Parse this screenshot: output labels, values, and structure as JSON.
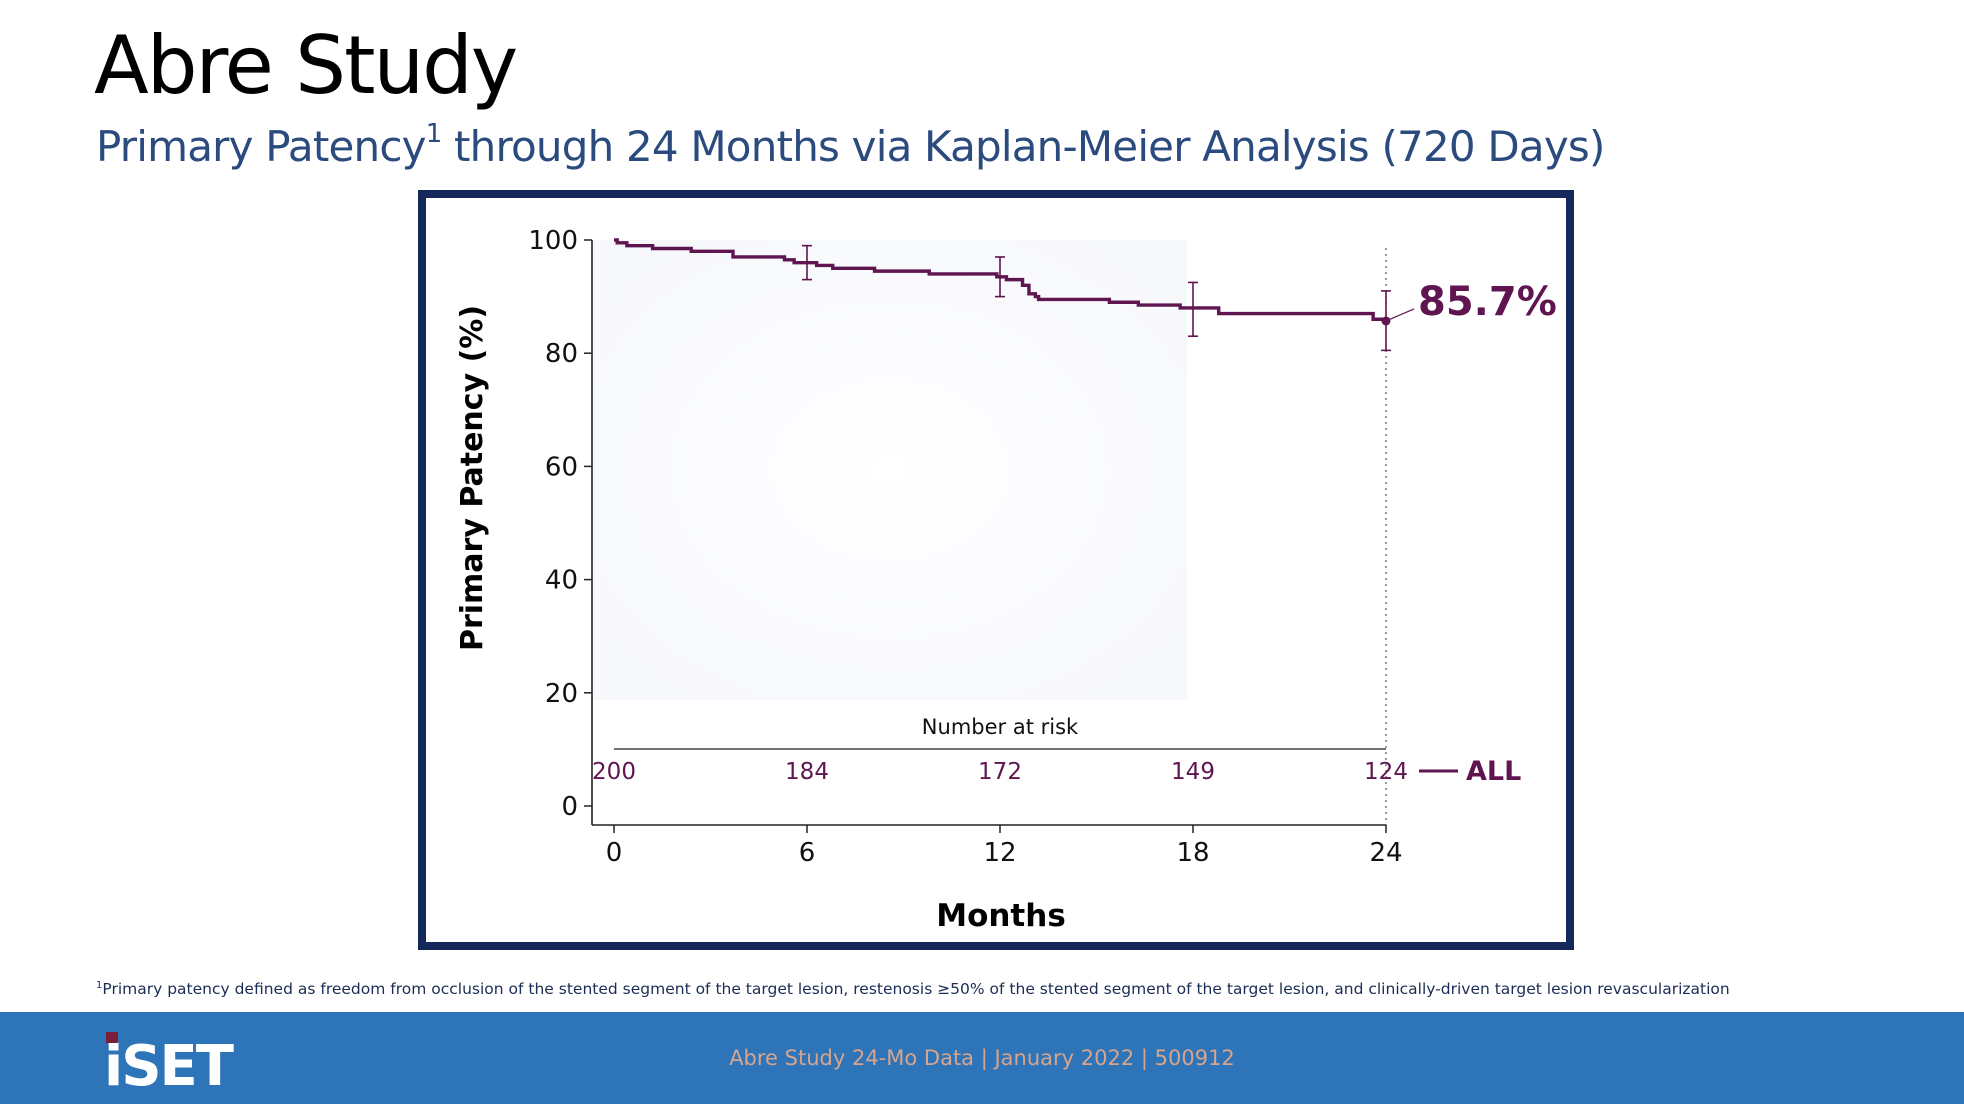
{
  "title": "Abre Study",
  "subtitle": {
    "main": "Primary Patency",
    "superscript": "1",
    "rest": " through 24 Months via Kaplan-Meier Analysis (720 Days)"
  },
  "chart_data": {
    "type": "line",
    "title": "",
    "xlabel": "Months",
    "ylabel": "Primary Patency (%)",
    "xlim": [
      0,
      24
    ],
    "ylim": [
      0,
      100
    ],
    "x_ticks": [
      0,
      6,
      12,
      18,
      24
    ],
    "y_ticks": [
      0,
      20,
      40,
      60,
      80,
      100
    ],
    "series": [
      {
        "name": "ALL",
        "color": "#5e1550",
        "step": true,
        "x": [
          0,
          0.1,
          0.4,
          1.2,
          2.4,
          3.7,
          5.3,
          5.6,
          6.3,
          6.8,
          8.1,
          9.8,
          11.9,
          12.2,
          12.7,
          12.9,
          13.1,
          13.2,
          15.4,
          16.3,
          17.6,
          18.8,
          23.6,
          24
        ],
        "y": [
          100,
          99.5,
          99,
          98.5,
          98,
          97,
          96.5,
          96,
          95.5,
          95,
          94.5,
          94,
          93.5,
          93,
          92,
          90.5,
          90,
          89.5,
          89,
          88.5,
          88,
          87,
          86,
          85.7
        ]
      }
    ],
    "confidence_intervals": [
      {
        "x": 6,
        "y": 96,
        "lower": 93,
        "upper": 99
      },
      {
        "x": 12,
        "y": 93.5,
        "lower": 90,
        "upper": 97
      },
      {
        "x": 18,
        "y": 87.5,
        "lower": 83,
        "upper": 92.5
      },
      {
        "x": 24,
        "y": 85.7,
        "lower": 80.5,
        "upper": 91
      }
    ],
    "endpoint_label": "85.7%",
    "number_at_risk": {
      "title": "Number at risk",
      "x": [
        0,
        6,
        12,
        18,
        24
      ],
      "values": [
        "200",
        "184",
        "172",
        "149",
        "124"
      ],
      "legend_label": "ALL"
    }
  },
  "footnote": {
    "superscript": "1",
    "text": "Primary patency defined as freedom from occlusion of the stented segment of the target lesion, restenosis ≥50% of the stented segment of the target lesion, and clinically-driven target lesion revascularization"
  },
  "footer": {
    "logo": "iSET",
    "text": "Abre Study 24-Mo Data | January 2022 | 500912"
  }
}
